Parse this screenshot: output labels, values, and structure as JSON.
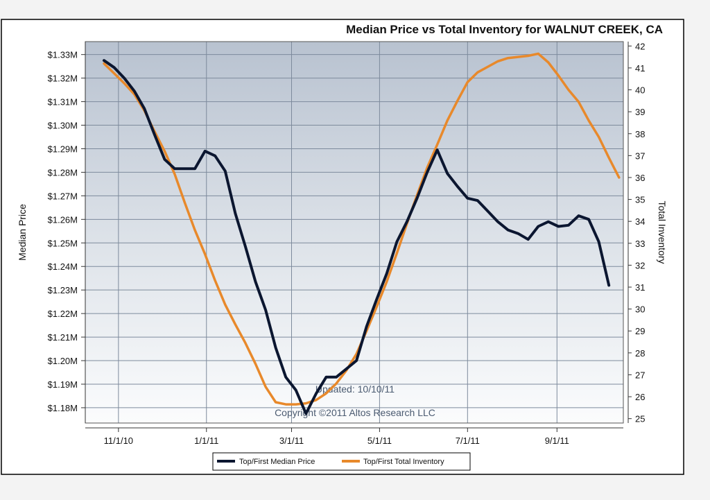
{
  "chart_data": {
    "type": "line",
    "title": "Median Price vs Total Inventory for WALNUT CREEK, CA",
    "ylabel": "Median Price",
    "y2label": "Total Inventory",
    "x_ticks": [
      "11/1/10",
      "1/1/11",
      "3/1/11",
      "5/1/11",
      "7/1/11",
      "9/1/11"
    ],
    "y_ticks": [
      "$1.18M",
      "$1.19M",
      "$1.20M",
      "$1.21M",
      "$1.22M",
      "$1.23M",
      "$1.24M",
      "$1.25M",
      "$1.26M",
      "$1.27M",
      "$1.28M",
      "$1.29M",
      "$1.30M",
      "$1.31M",
      "$1.32M",
      "$1.33M"
    ],
    "y2_ticks": [
      "25",
      "26",
      "27",
      "28",
      "29",
      "30",
      "31",
      "32",
      "33",
      "34",
      "35",
      "36",
      "37",
      "38",
      "39",
      "40",
      "41",
      "42"
    ],
    "ylim": [
      1.1735,
      1.3355
    ],
    "y2lim": [
      24.8,
      42.2
    ],
    "x_range": [
      "2010-10-09",
      "2011-10-17"
    ],
    "annotations": [
      "Updated: 10/10/11",
      "Copyright ©2011 Altos Research LLC"
    ],
    "grid": true,
    "legend_position": "bottom",
    "series": [
      {
        "name": "Top/First Median Price",
        "axis": "left",
        "color": "#0b1630",
        "points": [
          [
            "2010-10-22",
            1.3275
          ],
          [
            "2010-10-29",
            1.3245
          ],
          [
            "2010-11-05",
            1.32
          ],
          [
            "2010-11-12",
            1.3145
          ],
          [
            "2010-11-19",
            1.307
          ],
          [
            "2010-11-26",
            1.296
          ],
          [
            "2010-12-03",
            1.2855
          ],
          [
            "2010-12-10",
            1.2815
          ],
          [
            "2010-12-17",
            1.2815
          ],
          [
            "2010-12-24",
            1.2815
          ],
          [
            "2010-12-31",
            1.289
          ],
          [
            "2011-01-07",
            1.287
          ],
          [
            "2011-01-14",
            1.2805
          ],
          [
            "2011-01-21",
            1.2625
          ],
          [
            "2011-01-28",
            1.2485
          ],
          [
            "2011-02-04",
            1.2335
          ],
          [
            "2011-02-11",
            1.2215
          ],
          [
            "2011-02-18",
            1.2055
          ],
          [
            "2011-02-25",
            1.193
          ],
          [
            "2011-03-04",
            1.1875
          ],
          [
            "2011-03-11",
            1.1775
          ],
          [
            "2011-03-18",
            1.186
          ],
          [
            "2011-03-25",
            1.193
          ],
          [
            "2011-04-01",
            1.193
          ],
          [
            "2011-04-08",
            1.1965
          ],
          [
            "2011-04-15",
            1.2
          ],
          [
            "2011-04-22",
            1.2145
          ],
          [
            "2011-04-29",
            1.226
          ],
          [
            "2011-05-06",
            1.237
          ],
          [
            "2011-05-13",
            1.2505
          ],
          [
            "2011-05-20",
            1.259
          ],
          [
            "2011-05-27",
            1.269
          ],
          [
            "2011-06-03",
            1.28
          ],
          [
            "2011-06-10",
            1.2895
          ],
          [
            "2011-06-17",
            1.2795
          ],
          [
            "2011-06-24",
            1.274
          ],
          [
            "2011-07-01",
            1.269
          ],
          [
            "2011-07-08",
            1.268
          ],
          [
            "2011-07-15",
            1.2635
          ],
          [
            "2011-07-22",
            1.259
          ],
          [
            "2011-07-29",
            1.2555
          ],
          [
            "2011-08-05",
            1.254
          ],
          [
            "2011-08-12",
            1.2515
          ],
          [
            "2011-08-19",
            1.257
          ],
          [
            "2011-08-26",
            1.259
          ],
          [
            "2011-09-02",
            1.257
          ],
          [
            "2011-09-09",
            1.2575
          ],
          [
            "2011-09-16",
            1.2615
          ],
          [
            "2011-09-23",
            1.26
          ],
          [
            "2011-09-30",
            1.2505
          ],
          [
            "2011-10-07",
            1.232
          ]
        ]
      },
      {
        "name": "Top/First Total Inventory",
        "axis": "right",
        "color": "#e8892b",
        "points": [
          [
            "2010-10-22",
            41.2
          ],
          [
            "2010-10-29",
            40.75
          ],
          [
            "2010-11-05",
            40.3
          ],
          [
            "2010-11-12",
            39.8
          ],
          [
            "2010-11-19",
            39.05
          ],
          [
            "2010-11-26",
            38.1
          ],
          [
            "2010-12-03",
            37.2
          ],
          [
            "2010-12-10",
            36.15
          ],
          [
            "2010-12-17",
            34.85
          ],
          [
            "2010-12-24",
            33.6
          ],
          [
            "2010-12-31",
            32.5
          ],
          [
            "2011-01-07",
            31.3
          ],
          [
            "2011-01-14",
            30.2
          ],
          [
            "2011-01-21",
            29.3
          ],
          [
            "2011-01-28",
            28.45
          ],
          [
            "2011-02-04",
            27.5
          ],
          [
            "2011-02-11",
            26.45
          ],
          [
            "2011-02-18",
            25.75
          ],
          [
            "2011-02-25",
            25.65
          ],
          [
            "2011-03-04",
            25.65
          ],
          [
            "2011-03-11",
            25.7
          ],
          [
            "2011-03-18",
            25.85
          ],
          [
            "2011-03-25",
            26.15
          ],
          [
            "2011-04-01",
            26.6
          ],
          [
            "2011-04-08",
            27.2
          ],
          [
            "2011-04-15",
            27.95
          ],
          [
            "2011-04-22",
            29.0
          ],
          [
            "2011-04-29",
            30.1
          ],
          [
            "2011-05-06",
            31.25
          ],
          [
            "2011-05-13",
            32.55
          ],
          [
            "2011-05-20",
            33.9
          ],
          [
            "2011-05-27",
            35.2
          ],
          [
            "2011-06-03",
            36.45
          ],
          [
            "2011-06-10",
            37.5
          ],
          [
            "2011-06-17",
            38.6
          ],
          [
            "2011-06-24",
            39.5
          ],
          [
            "2011-07-01",
            40.35
          ],
          [
            "2011-07-08",
            40.8
          ],
          [
            "2011-07-15",
            41.05
          ],
          [
            "2011-07-22",
            41.3
          ],
          [
            "2011-07-29",
            41.45
          ],
          [
            "2011-08-05",
            41.5
          ],
          [
            "2011-08-12",
            41.55
          ],
          [
            "2011-08-19",
            41.65
          ],
          [
            "2011-08-26",
            41.25
          ],
          [
            "2011-09-02",
            40.65
          ],
          [
            "2011-09-09",
            40.0
          ],
          [
            "2011-09-16",
            39.45
          ],
          [
            "2011-09-23",
            38.6
          ],
          [
            "2011-09-30",
            37.85
          ],
          [
            "2011-10-07",
            36.9
          ],
          [
            "2011-10-14",
            36.0
          ]
        ]
      }
    ]
  }
}
